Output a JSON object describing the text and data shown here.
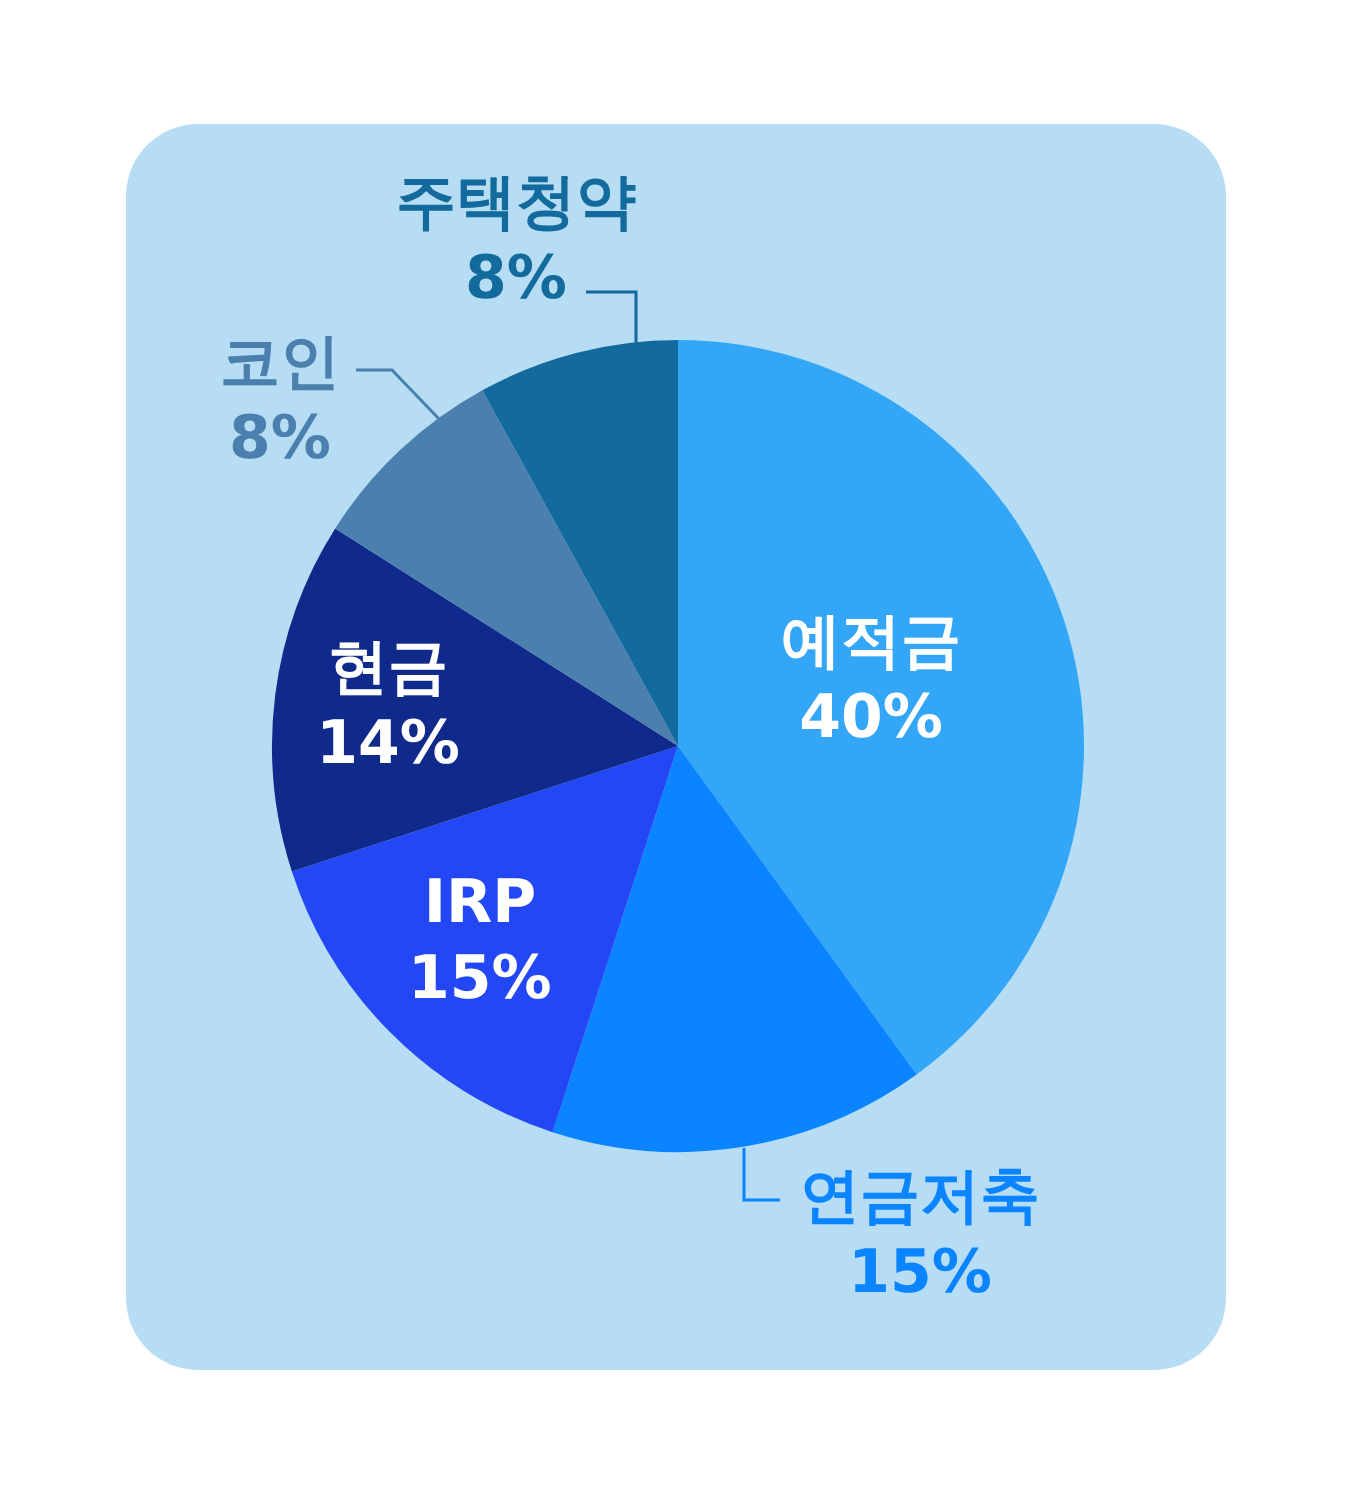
{
  "chart_data": {
    "type": "pie",
    "categories": [
      "예적금",
      "연금저축",
      "IRP",
      "현금",
      "코인",
      "주택청약"
    ],
    "values": [
      40,
      15,
      15,
      14,
      8,
      8
    ],
    "value_labels": [
      "40%",
      "15%",
      "15%",
      "14%",
      "8%",
      "8%"
    ],
    "colors": [
      "#33a6f8",
      "#0a84ff",
      "#2447f5",
      "#0f2a8a",
      "#4a7fae",
      "#136a9c"
    ],
    "legend": false
  }
}
